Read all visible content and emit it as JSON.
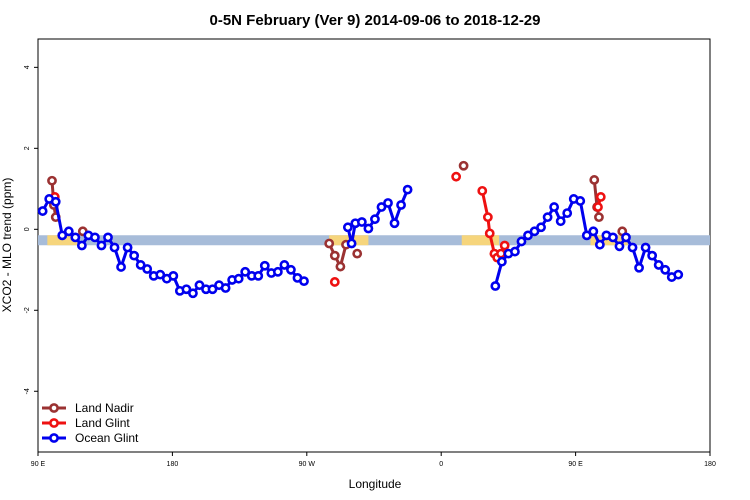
{
  "chart_data": {
    "type": "line",
    "title": "0-5N February (Ver 9)   2014-09-06 to 2018-12-29",
    "xlabel": "Longitude",
    "ylabel": "XCO2 - MLO trend (ppm)",
    "xlim": [
      90,
      450
    ],
    "ylim": [
      -5.5,
      4.7
    ],
    "x_ticks": [
      {
        "value": 90,
        "label": "90 E"
      },
      {
        "value": 162,
        "label": "180"
      },
      {
        "value": 234,
        "label": "90 W"
      },
      {
        "value": 306,
        "label": "0"
      },
      {
        "value": 378,
        "label": "90 E"
      },
      {
        "value": 450,
        "label": "180"
      }
    ],
    "y_ticks": [
      {
        "value": -4,
        "label": "-4"
      },
      {
        "value": -2,
        "label": "-2"
      },
      {
        "value": 0,
        "label": "0"
      },
      {
        "value": 2,
        "label": "2"
      },
      {
        "value": 4,
        "label": "4"
      }
    ],
    "grid": false,
    "legend_position": "bottom-left",
    "surface_band": {
      "y": -0.27,
      "ocean_color": "#a7bcd9",
      "land_color": "#f6d57c",
      "land_segments": [
        [
          95,
          111
        ],
        [
          246,
          267
        ],
        [
          317,
          337
        ],
        [
          386,
          406
        ]
      ]
    },
    "series": [
      {
        "name": "Land Nadir",
        "color": "#9b3232",
        "segments": [
          [
            [
              97.5,
              1.2
            ],
            [
              98.5,
              0.6
            ],
            [
              99.5,
              0.3
            ]
          ],
          [
            [
              114,
              -0.05
            ]
          ],
          [
            [
              246,
              -0.35
            ],
            [
              249,
              -0.65
            ],
            [
              252,
              -0.92
            ],
            [
              255,
              -0.38
            ]
          ],
          [
            [
              261,
              -0.6
            ]
          ],
          [
            [
              318,
              1.57
            ]
          ],
          [
            [
              388,
              1.22
            ],
            [
              389.5,
              0.55
            ],
            [
              390.5,
              0.3
            ]
          ],
          [
            [
              403,
              -0.05
            ]
          ]
        ]
      },
      {
        "name": "Land Glint",
        "color": "#ee1111",
        "segments": [
          [
            [
              99,
              0.8
            ]
          ],
          [
            [
              249,
              -1.3
            ]
          ],
          [
            [
              314,
              1.3
            ]
          ],
          [
            [
              328,
              0.95
            ],
            [
              331,
              0.3
            ],
            [
              332,
              -0.1
            ],
            [
              334.5,
              -0.6
            ],
            [
              336,
              -0.7
            ],
            [
              338,
              -0.6
            ],
            [
              340,
              -0.4
            ]
          ],
          [
            [
              390,
              0.55
            ],
            [
              391.5,
              0.8
            ]
          ]
        ]
      },
      {
        "name": "Ocean Glint",
        "color": "#0000ee",
        "segments": [
          [
            [
              92.5,
              0.45
            ],
            [
              96,
              0.75
            ],
            [
              99.5,
              0.68
            ],
            [
              103,
              -0.15
            ],
            [
              106.5,
              -0.05
            ],
            [
              110,
              -0.2
            ],
            [
              113.5,
              -0.4
            ],
            [
              117,
              -0.15
            ],
            [
              120.5,
              -0.2
            ],
            [
              124,
              -0.4
            ],
            [
              127.5,
              -0.2
            ],
            [
              131,
              -0.45
            ],
            [
              134.5,
              -0.93
            ],
            [
              138,
              -0.45
            ],
            [
              141.5,
              -0.65
            ],
            [
              145,
              -0.88
            ],
            [
              148.5,
              -0.98
            ],
            [
              152,
              -1.15
            ],
            [
              155.5,
              -1.12
            ],
            [
              159,
              -1.22
            ],
            [
              162.5,
              -1.15
            ],
            [
              166,
              -1.52
            ],
            [
              169.5,
              -1.48
            ],
            [
              173,
              -1.58
            ],
            [
              176.5,
              -1.38
            ],
            [
              180,
              -1.48
            ],
            [
              183.5,
              -1.48
            ],
            [
              187,
              -1.38
            ],
            [
              190.5,
              -1.45
            ],
            [
              194,
              -1.25
            ],
            [
              197.5,
              -1.22
            ],
            [
              201,
              -1.05
            ],
            [
              204.5,
              -1.15
            ],
            [
              208,
              -1.15
            ],
            [
              211.5,
              -0.9
            ],
            [
              215,
              -1.08
            ],
            [
              218.5,
              -1.05
            ],
            [
              222,
              -0.88
            ],
            [
              225.5,
              -1.0
            ],
            [
              229,
              -1.2
            ],
            [
              232.5,
              -1.28
            ]
          ],
          [
            [
              256,
              0.05
            ],
            [
              258,
              -0.35
            ],
            [
              260,
              0.15
            ],
            [
              263.5,
              0.18
            ],
            [
              267,
              0.02
            ],
            [
              270.5,
              0.25
            ],
            [
              274,
              0.55
            ],
            [
              277.5,
              0.65
            ],
            [
              281,
              0.15
            ],
            [
              284.5,
              0.6
            ],
            [
              288,
              0.98
            ]
          ],
          [
            [
              335,
              -1.4
            ],
            [
              338.5,
              -0.8
            ],
            [
              342,
              -0.6
            ],
            [
              345.5,
              -0.55
            ],
            [
              349,
              -0.3
            ],
            [
              352.5,
              -0.15
            ],
            [
              356,
              -0.05
            ],
            [
              359.5,
              0.05
            ],
            [
              363,
              0.3
            ],
            [
              366.5,
              0.55
            ],
            [
              370,
              0.2
            ],
            [
              373.5,
              0.4
            ],
            [
              377,
              0.75
            ],
            [
              380.5,
              0.7
            ],
            [
              384,
              -0.15
            ],
            [
              387.5,
              -0.05
            ],
            [
              391,
              -0.38
            ],
            [
              394.5,
              -0.15
            ],
            [
              398,
              -0.2
            ],
            [
              401.5,
              -0.42
            ],
            [
              405,
              -0.2
            ],
            [
              408.5,
              -0.45
            ],
            [
              412,
              -0.95
            ],
            [
              415.5,
              -0.45
            ],
            [
              419,
              -0.65
            ],
            [
              422.5,
              -0.88
            ],
            [
              426,
              -1.0
            ],
            [
              429.5,
              -1.18
            ],
            [
              433,
              -1.12
            ]
          ]
        ]
      }
    ]
  }
}
